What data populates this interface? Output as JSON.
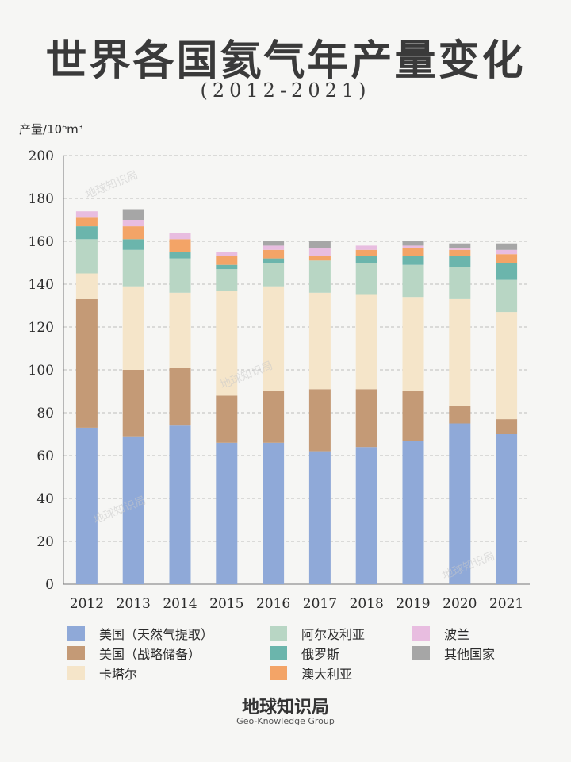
{
  "title": "世界各国氦气年产量变化",
  "subtitle": "(2012-2021)",
  "footer": {
    "name": "地球知识局",
    "english": "Geo-Knowledge Group"
  },
  "chart_data": {
    "type": "bar",
    "stacked": true,
    "ylabel": "产量/10⁶m³",
    "ylim": [
      0,
      200
    ],
    "yticks": [
      0,
      20,
      40,
      60,
      80,
      100,
      120,
      140,
      160,
      180,
      200
    ],
    "grid": true,
    "legend_position": "bottom",
    "categories": [
      "2012",
      "2013",
      "2014",
      "2015",
      "2016",
      "2017",
      "2018",
      "2019",
      "2020",
      "2021"
    ],
    "series": [
      {
        "name": "美国（天然气提取）",
        "color": "#8fa9d8",
        "values": [
          73,
          69,
          74,
          66,
          66,
          62,
          64,
          67,
          75,
          70
        ]
      },
      {
        "name": "美国（战略储备）",
        "color": "#c49a76",
        "values": [
          60,
          31,
          27,
          22,
          24,
          29,
          27,
          23,
          8,
          7
        ]
      },
      {
        "name": "卡塔尔",
        "color": "#f5e5c9",
        "values": [
          12,
          39,
          35,
          49,
          49,
          45,
          44,
          44,
          50,
          50
        ]
      },
      {
        "name": "阿尔及利亚",
        "color": "#b8d6c4",
        "values": [
          16,
          17,
          16,
          10,
          11,
          15,
          15,
          15,
          15,
          15
        ]
      },
      {
        "name": "俄罗斯",
        "color": "#6bb5ac",
        "values": [
          6,
          5,
          3,
          2,
          2,
          0,
          3,
          4,
          5,
          8
        ]
      },
      {
        "name": "澳大利亚",
        "color": "#f3a467",
        "values": [
          4,
          6,
          6,
          4,
          4,
          2,
          3,
          4,
          3,
          4
        ]
      },
      {
        "name": "波兰",
        "color": "#e8bde0",
        "values": [
          3,
          3,
          3,
          2,
          2,
          4,
          2,
          1,
          1,
          2
        ]
      },
      {
        "name": "其他国家",
        "color": "#a6a6a6",
        "values": [
          0,
          5,
          0,
          0,
          2,
          3,
          0,
          2,
          2,
          3
        ]
      }
    ],
    "watermark": "地球知识局"
  }
}
